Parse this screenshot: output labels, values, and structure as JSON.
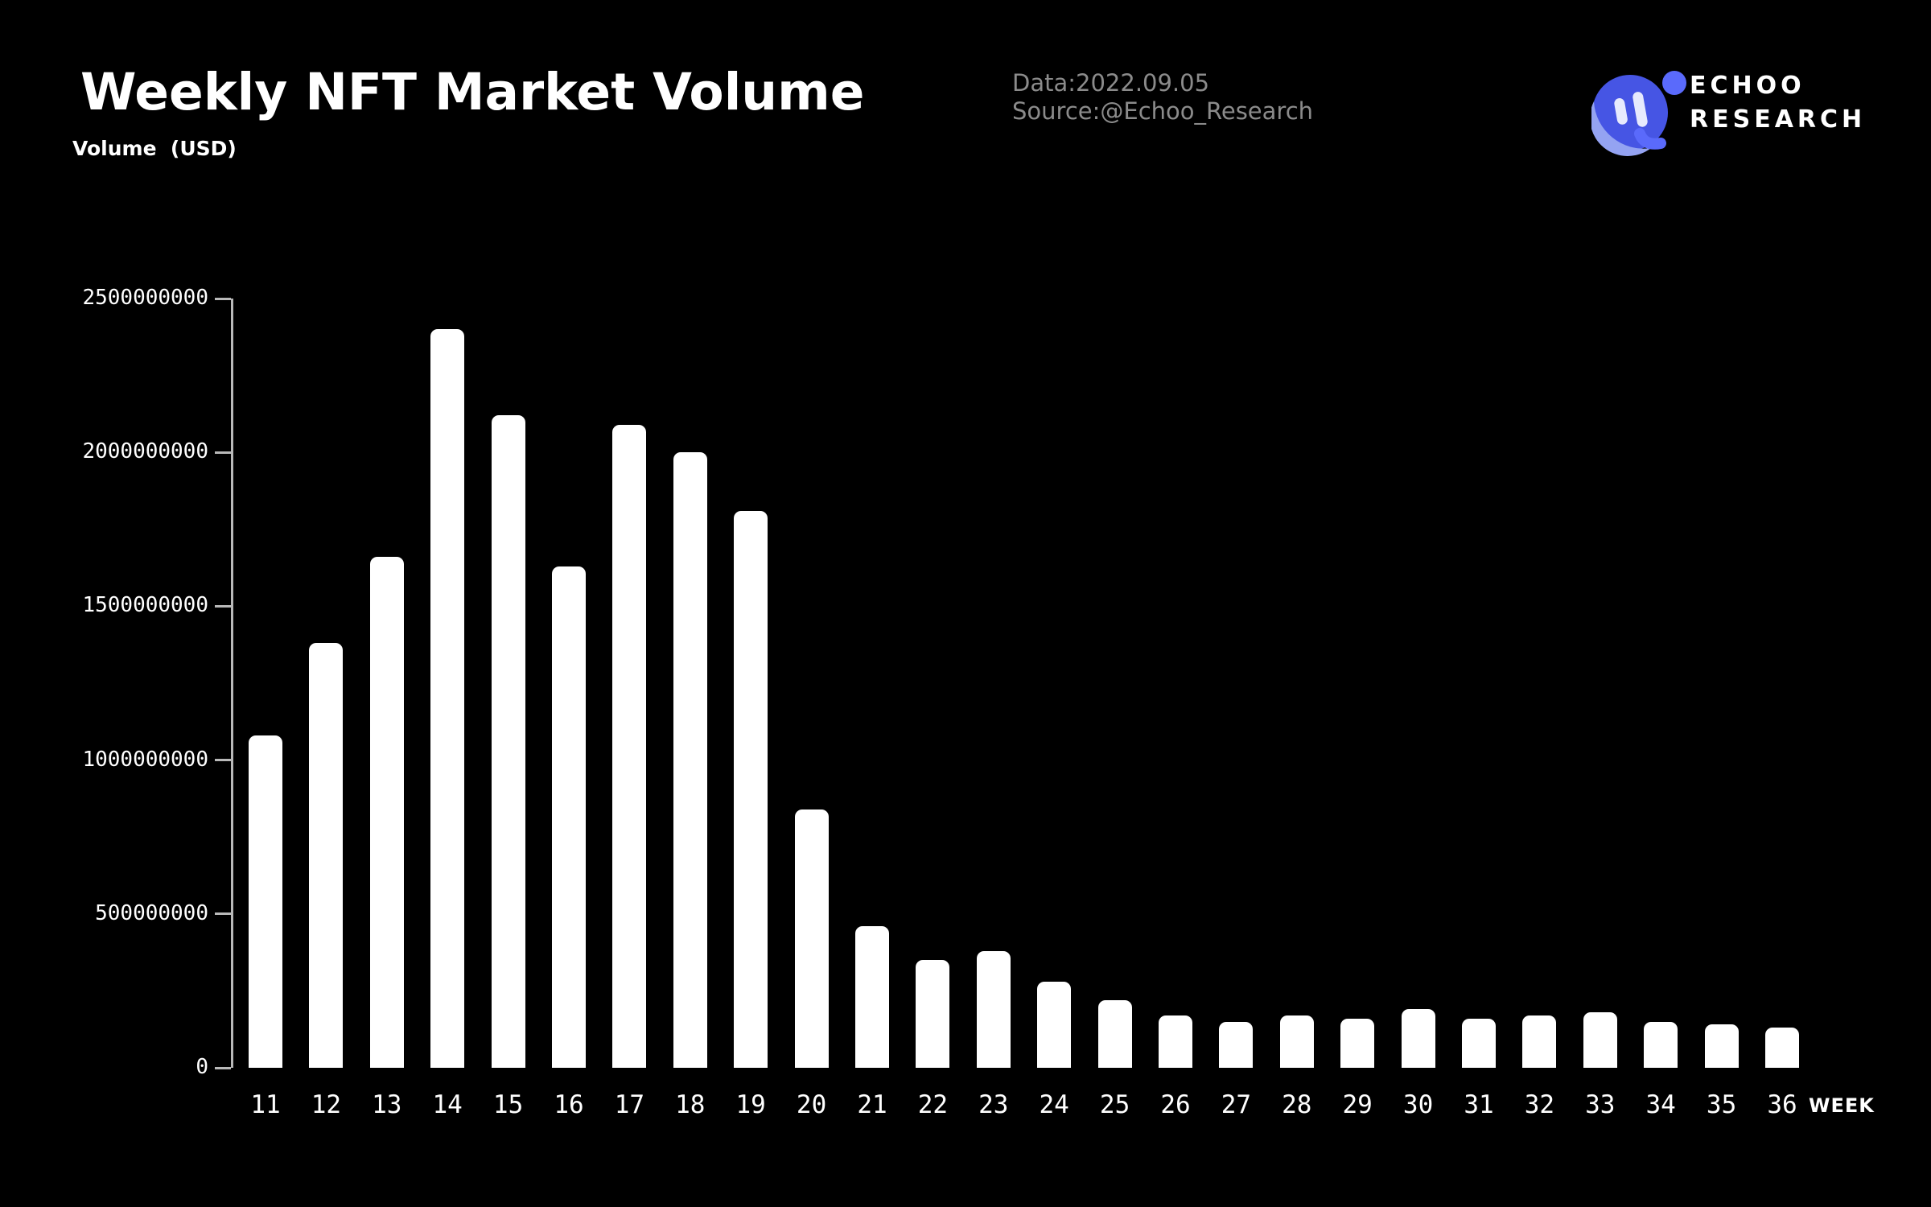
{
  "header": {
    "title": "Weekly NFT Market Volume",
    "meta_line1": "Data:2022.09.05",
    "meta_line2": "Source:@Echoo_Research",
    "brand": {
      "line1": "ECHOO",
      "line2": "RESEARCH"
    }
  },
  "chart_data": {
    "type": "bar",
    "title": "Weekly NFT Market Volume",
    "xlabel": "WEEK",
    "ylabel": "Volume  (USD)",
    "categories": [
      "11",
      "12",
      "13",
      "14",
      "15",
      "16",
      "17",
      "18",
      "19",
      "20",
      "21",
      "22",
      "23",
      "24",
      "25",
      "26",
      "27",
      "28",
      "29",
      "30",
      "31",
      "32",
      "33",
      "34",
      "35",
      "36"
    ],
    "values": [
      1080000000,
      1380000000,
      1660000000,
      2400000000,
      2120000000,
      1630000000,
      2090000000,
      2000000000,
      1810000000,
      840000000,
      460000000,
      350000000,
      380000000,
      280000000,
      220000000,
      170000000,
      150000000,
      170000000,
      160000000,
      190000000,
      160000000,
      170000000,
      180000000,
      150000000,
      140000000,
      130000000
    ],
    "ylim": [
      0,
      2500000000
    ],
    "yticks": [
      0,
      500000000,
      1000000000,
      1500000000,
      2000000000,
      2500000000
    ],
    "grid": false,
    "legend": "none",
    "bar_color": "#ffffff",
    "axis_color": "#b9b9b9",
    "background": "#000000",
    "tick_text_color": "#ffffff"
  },
  "colors": {
    "title_text": "#ffffff",
    "meta_text": "#8b8b8b",
    "logo_main_blue": "#4655e4",
    "logo_light_blue": "#94a3f2",
    "logo_mid_blue": "#5a6afb",
    "logo_pale": "#e7eafd"
  }
}
